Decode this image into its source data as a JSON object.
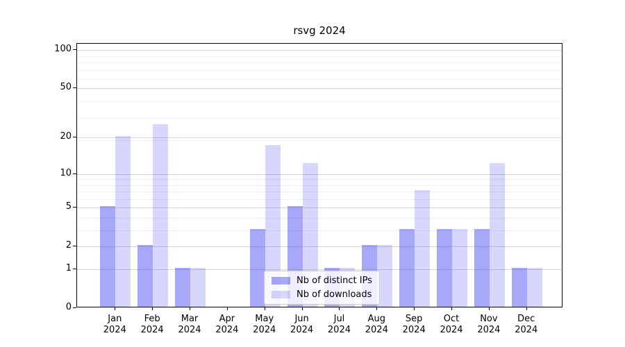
{
  "chart_data": {
    "type": "bar",
    "title": "rsvg 2024",
    "categories": [
      "Jan 2024",
      "Feb 2024",
      "Mar 2024",
      "Apr 2024",
      "May 2024",
      "Jun 2024",
      "Jul 2024",
      "Aug 2024",
      "Sep 2024",
      "Oct 2024",
      "Nov 2024",
      "Dec 2024"
    ],
    "month_line1": [
      "Jan",
      "Feb",
      "Mar",
      "Apr",
      "May",
      "Jun",
      "Jul",
      "Aug",
      "Sep",
      "Oct",
      "Nov",
      "Dec"
    ],
    "month_line2": [
      "2024",
      "2024",
      "2024",
      "2024",
      "2024",
      "2024",
      "2024",
      "2024",
      "2024",
      "2024",
      "2024",
      "2024"
    ],
    "series": [
      {
        "name": "Nb of distinct IPs",
        "color": "rgba(0,0,240,0.34)",
        "values": [
          5,
          2,
          1,
          0,
          3,
          5,
          1,
          2,
          3,
          3,
          3,
          1
        ]
      },
      {
        "name": "Nb of downloads",
        "color": "rgba(0,0,240,0.155)",
        "values": [
          20,
          25,
          1,
          0,
          17,
          12,
          1,
          2,
          7,
          3,
          12,
          1
        ]
      }
    ],
    "yscale": "log(1+x)",
    "ylabel": "",
    "xlabel": "",
    "ylim": [
      0,
      112
    ],
    "y_ticks": [
      0,
      1,
      2,
      5,
      10,
      20,
      50,
      100
    ],
    "y_tick_labels": [
      "0",
      "1",
      "2",
      "5",
      "10",
      "20",
      "50",
      "100"
    ],
    "y_minor_gridlines": [
      3,
      4,
      6,
      7,
      8,
      9,
      19,
      29,
      39,
      49,
      59,
      69,
      79,
      89
    ],
    "grid": true,
    "legend_position": "lower center",
    "colors": {
      "major_grid": "#d9d9d9",
      "minor_grid": "#efefef",
      "axis": "#000000",
      "background": "#ffffff"
    }
  }
}
